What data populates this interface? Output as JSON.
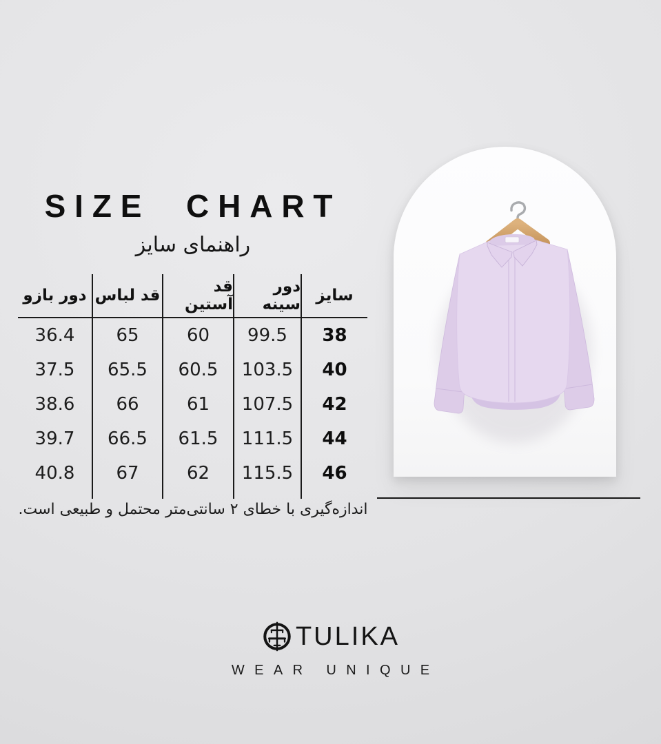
{
  "header": {
    "title": "SIZE CHART",
    "subtitle_fa": "راهنمای سایز"
  },
  "size_table": {
    "columns": [
      "دور بازو",
      "قد لباس",
      "قد آستین",
      "دور سینه",
      "سایز"
    ],
    "size_column_index": 4,
    "rows": [
      [
        "36.4",
        "65",
        "60",
        "99.5",
        "38"
      ],
      [
        "37.5",
        "65.5",
        "60.5",
        "103.5",
        "40"
      ],
      [
        "38.6",
        "66",
        "61",
        "107.5",
        "42"
      ],
      [
        "39.7",
        "66.5",
        "61.5",
        "111.5",
        "44"
      ],
      [
        "40.8",
        "67",
        "62",
        "115.5",
        "46"
      ]
    ],
    "note_fa": "اندازه‌گیری با خطای ۲ سانتی‌متر محتمل و طبیعی است."
  },
  "product": {
    "description": "lavender long-sleeve shirt on a wooden hanger inside a white arch panel",
    "shirt_color": "#e6d8ef",
    "hanger_wood_color": "#d1a269",
    "hook_color": "#a9abae",
    "arch_color": "#fdfdfe"
  },
  "brand": {
    "name": "TULIKA",
    "tagline": "WEAR UNIQUE",
    "logo_icon": "sword-in-circle-icon"
  },
  "colors": {
    "background": "#e3e3e5",
    "text": "#1a1a1a",
    "table_line": "#1a1a1a"
  }
}
